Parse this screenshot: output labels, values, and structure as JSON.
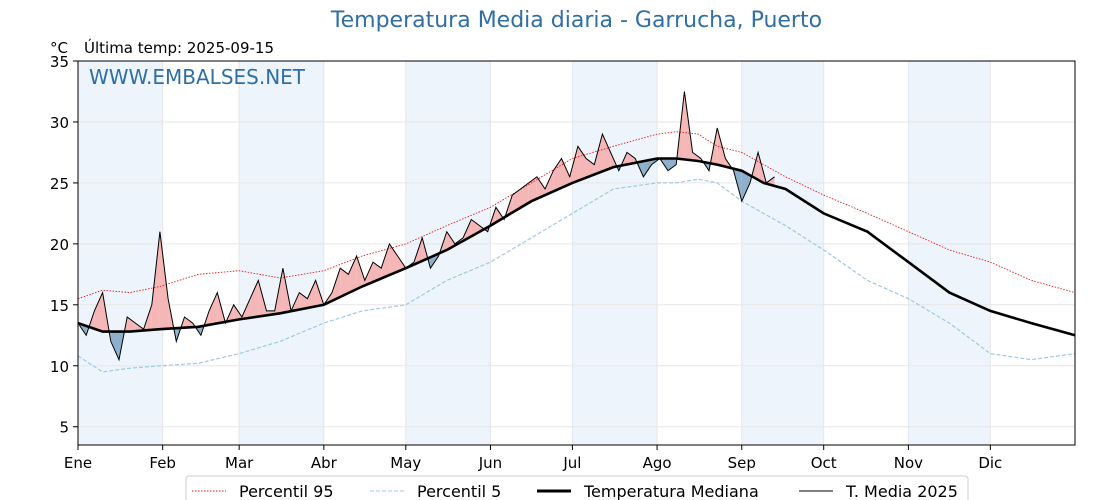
{
  "header": {
    "title": "Temperatura Media diaria - Garrucha, Puerto",
    "unit": "°C",
    "last_temp": "Última temp: 2025-09-15"
  },
  "watermark": "WWW.EMBALSES.NET",
  "legend": {
    "p95": "Percentil 95",
    "p5": "Percentil 5",
    "median": "Temperatura Mediana",
    "current": "T. Media 2025"
  },
  "colors": {
    "title": "#2f6fa5",
    "p95": "#e31a1c",
    "p5": "#9ecae1",
    "median": "#000000",
    "current": "#000000",
    "above_fill": "#f4b6b6",
    "below_fill": "#8fb0cc",
    "month_band": "#eef4fb",
    "grid": "#e6e6e6"
  },
  "chart_data": {
    "type": "line",
    "title": "Temperatura Media diaria - Garrucha, Puerto",
    "xlabel": "",
    "ylabel": "°C",
    "ylim": [
      3.5,
      35
    ],
    "xlim": [
      1,
      366
    ],
    "grid": true,
    "legend_position": "bottom",
    "month_ticks": [
      {
        "label": "Ene",
        "day": 1
      },
      {
        "label": "Feb",
        "day": 32
      },
      {
        "label": "Mar",
        "day": 60
      },
      {
        "label": "Abr",
        "day": 91
      },
      {
        "label": "May",
        "day": 121
      },
      {
        "label": "Jun",
        "day": 152
      },
      {
        "label": "Jul",
        "day": 182
      },
      {
        "label": "Ago",
        "day": 213
      },
      {
        "label": "Sep",
        "day": 244
      },
      {
        "label": "Oct",
        "day": 274
      },
      {
        "label": "Nov",
        "day": 305
      },
      {
        "label": "Dic",
        "day": 335
      }
    ],
    "y_ticks": [
      5,
      10,
      15,
      20,
      25,
      30,
      35
    ],
    "series": [
      {
        "name": "Percentil 95",
        "style": "dotted",
        "x": [
          1,
          10,
          20,
          31,
          45,
          60,
          75,
          91,
          105,
          121,
          136,
          152,
          167,
          182,
          197,
          213,
          220,
          228,
          235,
          244,
          252,
          260,
          274,
          290,
          305,
          320,
          335,
          350,
          366
        ],
        "values": [
          15.5,
          16.2,
          16.0,
          16.5,
          17.5,
          17.8,
          17.2,
          17.8,
          19.0,
          20.0,
          21.5,
          23.0,
          25.0,
          27.0,
          28.0,
          29.0,
          29.2,
          29.0,
          28.0,
          27.5,
          26.5,
          25.5,
          24.0,
          22.5,
          21.0,
          19.5,
          18.5,
          17.0,
          16.0
        ]
      },
      {
        "name": "Percentil 5",
        "style": "dashed",
        "x": [
          1,
          10,
          20,
          31,
          45,
          60,
          75,
          91,
          105,
          121,
          136,
          152,
          167,
          182,
          197,
          213,
          220,
          228,
          235,
          244,
          252,
          260,
          274,
          290,
          305,
          320,
          335,
          350,
          366
        ],
        "values": [
          10.8,
          9.5,
          9.8,
          10.0,
          10.2,
          11.0,
          12.0,
          13.5,
          14.5,
          15.0,
          17.0,
          18.5,
          20.5,
          22.5,
          24.5,
          25.0,
          25.0,
          25.3,
          25.0,
          23.5,
          22.5,
          21.5,
          19.5,
          17.0,
          15.5,
          13.5,
          11.0,
          10.5,
          11.0
        ]
      },
      {
        "name": "Temperatura Mediana",
        "style": "thick",
        "x": [
          1,
          10,
          20,
          31,
          45,
          60,
          75,
          91,
          105,
          121,
          136,
          152,
          167,
          182,
          197,
          213,
          220,
          228,
          235,
          244,
          252,
          260,
          274,
          290,
          305,
          320,
          335,
          350,
          366
        ],
        "values": [
          13.5,
          12.8,
          12.8,
          13.0,
          13.2,
          13.8,
          14.3,
          15.0,
          16.5,
          18.0,
          19.5,
          21.5,
          23.5,
          25.0,
          26.3,
          27.0,
          27.0,
          26.8,
          26.5,
          26.0,
          25.0,
          24.5,
          22.5,
          21.0,
          18.5,
          16.0,
          14.5,
          13.5,
          12.5
        ]
      },
      {
        "name": "T. Media 2025",
        "style": "thin",
        "x": [
          1,
          4,
          7,
          10,
          13,
          16,
          19,
          22,
          25,
          28,
          31,
          34,
          37,
          40,
          43,
          46,
          49,
          52,
          55,
          58,
          61,
          64,
          67,
          70,
          73,
          76,
          79,
          82,
          85,
          88,
          91,
          94,
          97,
          100,
          103,
          106,
          109,
          112,
          115,
          118,
          121,
          124,
          127,
          130,
          133,
          136,
          139,
          142,
          145,
          148,
          151,
          154,
          157,
          160,
          163,
          166,
          169,
          172,
          175,
          178,
          181,
          184,
          187,
          190,
          193,
          196,
          199,
          202,
          205,
          208,
          211,
          214,
          217,
          220,
          223,
          226,
          229,
          232,
          235,
          238,
          241,
          244,
          247,
          250,
          253,
          256
        ],
        "values": [
          13.5,
          12.5,
          14.5,
          16.0,
          12.0,
          10.5,
          14.0,
          13.5,
          13.0,
          15.0,
          21.0,
          15.5,
          12.0,
          14.0,
          13.5,
          12.5,
          14.5,
          16.0,
          13.5,
          15.0,
          14.0,
          15.5,
          17.0,
          14.5,
          14.5,
          18.0,
          14.5,
          16.0,
          15.5,
          17.0,
          15.0,
          16.0,
          18.0,
          17.5,
          19.0,
          17.0,
          18.5,
          18.0,
          20.0,
          19.0,
          18.0,
          18.5,
          20.5,
          18.0,
          19.0,
          21.0,
          20.0,
          20.5,
          22.0,
          21.5,
          21.0,
          23.0,
          22.0,
          24.0,
          24.5,
          25.0,
          25.5,
          24.5,
          26.0,
          27.0,
          25.5,
          28.0,
          27.0,
          26.5,
          29.0,
          27.5,
          26.0,
          27.5,
          27.0,
          25.5,
          26.5,
          27.0,
          26.0,
          26.5,
          32.5,
          27.5,
          27.0,
          26.0,
          29.5,
          27.0,
          26.0,
          23.5,
          25.0,
          27.5,
          25.0,
          25.5
        ]
      }
    ]
  }
}
